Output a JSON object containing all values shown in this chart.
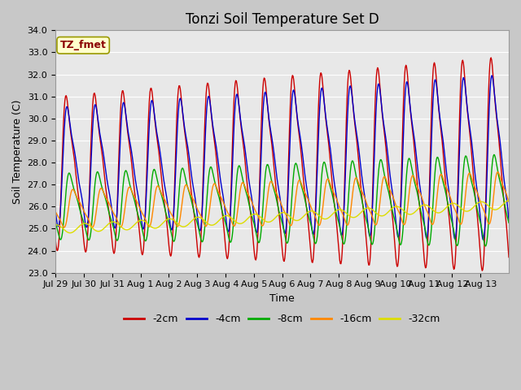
{
  "title": "Tonzi Soil Temperature Set D",
  "xlabel": "Time",
  "ylabel": "Soil Temperature (C)",
  "ylim": [
    23.0,
    34.0
  ],
  "yticks": [
    23.0,
    24.0,
    25.0,
    26.0,
    27.0,
    28.0,
    29.0,
    30.0,
    31.0,
    32.0,
    33.0,
    34.0
  ],
  "xtick_labels": [
    "Jul 29",
    "Jul 30",
    "Jul 31",
    "Aug 1",
    "Aug 2",
    "Aug 3",
    "Aug 4",
    "Aug 5",
    "Aug 6",
    "Aug 7",
    "Aug 8",
    "Aug 9",
    "Aug 10",
    "Aug 11",
    "Aug 12",
    "Aug 13"
  ],
  "legend_labels": [
    "-2cm",
    "-4cm",
    "-8cm",
    "-16cm",
    "-32cm"
  ],
  "legend_colors": [
    "#cc0000",
    "#0000cc",
    "#00aa00",
    "#ff8800",
    "#dddd00"
  ],
  "annotation_text": "TZ_fmet",
  "annotation_color": "#8b0000",
  "annotation_bg": "#ffffcc",
  "fig_bg": "#c8c8c8",
  "plot_bg": "#e8e8e8",
  "grid_color": "#ffffff",
  "title_fontsize": 12,
  "label_fontsize": 9,
  "tick_fontsize": 8
}
